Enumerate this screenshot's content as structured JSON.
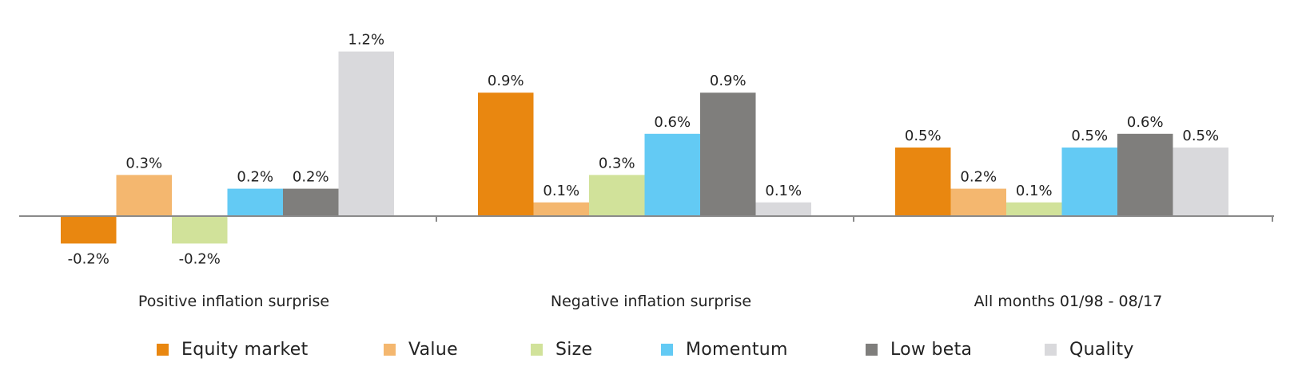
{
  "chart_data": {
    "type": "bar",
    "categories": [
      "Positive inflation surprise",
      "Negative inflation surprise",
      "All months 01/98 - 08/17"
    ],
    "series": [
      {
        "name": "Equity market",
        "color": "#E98710",
        "values": [
          -0.2,
          0.9,
          0.5
        ],
        "labels": [
          "-0.2%",
          "0.9%",
          "0.5%"
        ]
      },
      {
        "name": "Value",
        "color": "#F4B76F",
        "values": [
          0.3,
          0.1,
          0.2
        ],
        "labels": [
          "0.3%",
          "0.1%",
          "0.2%"
        ]
      },
      {
        "name": "Size",
        "color": "#D1E29A",
        "values": [
          -0.2,
          0.3,
          0.1
        ],
        "labels": [
          "-0.2%",
          "0.3%",
          "0.1%"
        ]
      },
      {
        "name": "Momentum",
        "color": "#63CAF4",
        "values": [
          0.2,
          0.6,
          0.5
        ],
        "labels": [
          "0.2%",
          "0.6%",
          "0.5%"
        ]
      },
      {
        "name": "Low beta",
        "color": "#7F7E7C",
        "values": [
          0.2,
          0.9,
          0.6
        ],
        "labels": [
          "0.2%",
          "0.9%",
          "0.6%"
        ]
      },
      {
        "name": "Quality",
        "color": "#D9D9DC",
        "values": [
          1.2,
          0.1,
          0.5
        ],
        "labels": [
          "1.2%",
          "0.1%",
          "0.5%"
        ]
      }
    ],
    "title": "",
    "xlabel": "",
    "ylabel": "",
    "ylim": [
      -0.25,
      1.3
    ],
    "grid": false,
    "legend_position": "bottom"
  }
}
